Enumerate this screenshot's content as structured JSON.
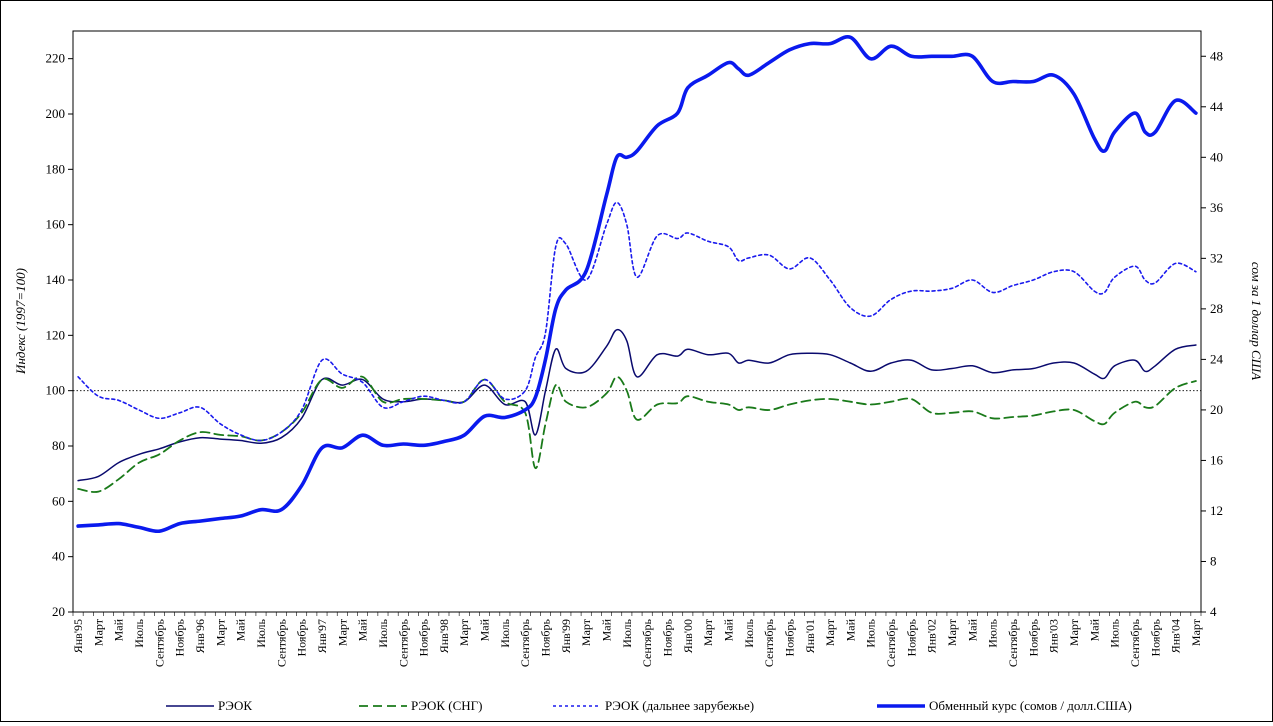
{
  "chart_data": {
    "type": "line",
    "title": "",
    "ylabel_left": "Индекс (1997=100)",
    "ylabel_right": "сом за 1 доллар США",
    "ylim_left": [
      20,
      230
    ],
    "yticks_left": [
      20,
      40,
      60,
      80,
      100,
      120,
      140,
      160,
      180,
      200,
      220
    ],
    "ylim_right": [
      4,
      50
    ],
    "yticks_right": [
      4,
      8,
      12,
      16,
      20,
      24,
      28,
      32,
      36,
      40,
      44,
      48
    ],
    "reference_line_left": 100,
    "x_start": "1995-01",
    "x_end": "2004-03",
    "x_tick_labels": [
      {
        "i": 0,
        "label": "Янв'95"
      },
      {
        "i": 2,
        "label": "Март"
      },
      {
        "i": 4,
        "label": "Май"
      },
      {
        "i": 6,
        "label": "Июль"
      },
      {
        "i": 8,
        "label": "Сентябрь"
      },
      {
        "i": 10,
        "label": "Ноябрь"
      },
      {
        "i": 12,
        "label": "Янв'96"
      },
      {
        "i": 14,
        "label": "Март"
      },
      {
        "i": 16,
        "label": "Май"
      },
      {
        "i": 18,
        "label": "Июль"
      },
      {
        "i": 20,
        "label": "Сентябрь"
      },
      {
        "i": 22,
        "label": "Ноябрь"
      },
      {
        "i": 24,
        "label": "Янв'97"
      },
      {
        "i": 26,
        "label": "Март"
      },
      {
        "i": 28,
        "label": "Май"
      },
      {
        "i": 30,
        "label": "Июль"
      },
      {
        "i": 32,
        "label": "Сентябрь"
      },
      {
        "i": 34,
        "label": "Ноябрь"
      },
      {
        "i": 36,
        "label": "Янв'98"
      },
      {
        "i": 38,
        "label": "Март"
      },
      {
        "i": 40,
        "label": "Май"
      },
      {
        "i": 42,
        "label": "Июль"
      },
      {
        "i": 44,
        "label": "Сентябрь"
      },
      {
        "i": 46,
        "label": "Ноябрь"
      },
      {
        "i": 48,
        "label": "Янв'99"
      },
      {
        "i": 50,
        "label": "Март"
      },
      {
        "i": 52,
        "label": "Май"
      },
      {
        "i": 54,
        "label": "Июль"
      },
      {
        "i": 56,
        "label": "Сентябрь"
      },
      {
        "i": 58,
        "label": "Ноябрь"
      },
      {
        "i": 60,
        "label": "Янв'00"
      },
      {
        "i": 62,
        "label": "Март"
      },
      {
        "i": 64,
        "label": "Май"
      },
      {
        "i": 66,
        "label": "Июль"
      },
      {
        "i": 68,
        "label": "Сентябрь"
      },
      {
        "i": 70,
        "label": "Ноябрь"
      },
      {
        "i": 72,
        "label": "Янв'01"
      },
      {
        "i": 74,
        "label": "Март"
      },
      {
        "i": 76,
        "label": "Май"
      },
      {
        "i": 78,
        "label": "Июль"
      },
      {
        "i": 80,
        "label": "Сентябрь"
      },
      {
        "i": 82,
        "label": "Ноябрь"
      },
      {
        "i": 84,
        "label": "Янв'02"
      },
      {
        "i": 86,
        "label": "Март"
      },
      {
        "i": 88,
        "label": "Май"
      },
      {
        "i": 90,
        "label": "Июль"
      },
      {
        "i": 92,
        "label": "Сентябрь"
      },
      {
        "i": 94,
        "label": "Ноябрь"
      },
      {
        "i": 96,
        "label": "Янв'03"
      },
      {
        "i": 98,
        "label": "Март"
      },
      {
        "i": 100,
        "label": "Май"
      },
      {
        "i": 102,
        "label": "Июль"
      },
      {
        "i": 104,
        "label": "Сентябрь"
      },
      {
        "i": 106,
        "label": "Ноябрь"
      },
      {
        "i": 108,
        "label": "Янв'04"
      },
      {
        "i": 110,
        "label": "Март"
      }
    ],
    "legend_position": "bottom",
    "series": [
      {
        "name": "РЭОК",
        "axis": "left",
        "color": "#0a0a6e",
        "style": "solid",
        "width": 1.5,
        "points": [
          [
            0,
            67.5
          ],
          [
            2,
            69
          ],
          [
            4,
            74
          ],
          [
            6,
            77
          ],
          [
            8,
            79
          ],
          [
            10,
            81.5
          ],
          [
            12,
            83
          ],
          [
            14,
            82.5
          ],
          [
            16,
            82
          ],
          [
            18,
            81
          ],
          [
            20,
            83
          ],
          [
            22,
            90
          ],
          [
            24,
            104
          ],
          [
            26,
            102
          ],
          [
            28,
            104
          ],
          [
            30,
            97
          ],
          [
            32,
            96
          ],
          [
            34,
            97
          ],
          [
            36,
            96.5
          ],
          [
            38,
            96
          ],
          [
            40,
            102
          ],
          [
            42,
            95
          ],
          [
            44,
            96
          ],
          [
            45,
            84
          ],
          [
            46,
            100
          ],
          [
            47,
            115
          ],
          [
            48,
            108
          ],
          [
            50,
            107
          ],
          [
            52,
            116
          ],
          [
            53,
            122
          ],
          [
            54,
            118
          ],
          [
            55,
            105
          ],
          [
            57,
            113
          ],
          [
            59,
            112.5
          ],
          [
            60,
            115
          ],
          [
            62,
            113
          ],
          [
            64,
            113.5
          ],
          [
            65,
            110
          ],
          [
            66,
            111
          ],
          [
            68,
            110
          ],
          [
            70,
            113
          ],
          [
            72,
            113.5
          ],
          [
            74,
            113
          ],
          [
            76,
            110
          ],
          [
            78,
            107
          ],
          [
            80,
            110
          ],
          [
            82,
            111
          ],
          [
            84,
            107.5
          ],
          [
            86,
            108
          ],
          [
            88,
            109
          ],
          [
            90,
            106.5
          ],
          [
            92,
            107.5
          ],
          [
            94,
            108
          ],
          [
            96,
            110
          ],
          [
            98,
            110
          ],
          [
            100,
            106
          ],
          [
            101,
            104.5
          ],
          [
            102,
            109
          ],
          [
            104,
            111
          ],
          [
            105,
            107
          ],
          [
            106,
            109
          ],
          [
            108,
            115
          ],
          [
            110,
            116.5
          ]
        ]
      },
      {
        "name": "РЭОК (СНГ)",
        "axis": "left",
        "color": "#1a7a1a",
        "style": "dashed",
        "width": 1.8,
        "points": [
          [
            0,
            64.5
          ],
          [
            2,
            63.5
          ],
          [
            4,
            68
          ],
          [
            6,
            74
          ],
          [
            8,
            77
          ],
          [
            10,
            82
          ],
          [
            12,
            85
          ],
          [
            14,
            84
          ],
          [
            16,
            83.5
          ],
          [
            18,
            82
          ],
          [
            20,
            85
          ],
          [
            22,
            92
          ],
          [
            24,
            104
          ],
          [
            26,
            101
          ],
          [
            28,
            105
          ],
          [
            30,
            96
          ],
          [
            32,
            97
          ],
          [
            34,
            97
          ],
          [
            36,
            96.5
          ],
          [
            38,
            96
          ],
          [
            40,
            104
          ],
          [
            42,
            96
          ],
          [
            44,
            92
          ],
          [
            45,
            72
          ],
          [
            46,
            88
          ],
          [
            47,
            102
          ],
          [
            48,
            96
          ],
          [
            50,
            94
          ],
          [
            52,
            99
          ],
          [
            53,
            105
          ],
          [
            54,
            100
          ],
          [
            55,
            89.5
          ],
          [
            57,
            95
          ],
          [
            59,
            95.5
          ],
          [
            60,
            98
          ],
          [
            62,
            96
          ],
          [
            64,
            95
          ],
          [
            65,
            93
          ],
          [
            66,
            94
          ],
          [
            68,
            93
          ],
          [
            70,
            95
          ],
          [
            72,
            96.5
          ],
          [
            74,
            97
          ],
          [
            76,
            96
          ],
          [
            78,
            95
          ],
          [
            80,
            96
          ],
          [
            82,
            97
          ],
          [
            84,
            92
          ],
          [
            86,
            92
          ],
          [
            88,
            92.5
          ],
          [
            90,
            90
          ],
          [
            92,
            90.5
          ],
          [
            94,
            91
          ],
          [
            96,
            92.5
          ],
          [
            98,
            93
          ],
          [
            100,
            89
          ],
          [
            101,
            88
          ],
          [
            102,
            92
          ],
          [
            104,
            96
          ],
          [
            105,
            94
          ],
          [
            106,
            94.5
          ],
          [
            108,
            101
          ],
          [
            110,
            103.5
          ]
        ]
      },
      {
        "name": "РЭОК (дальнее зарубежье)",
        "axis": "left",
        "color": "#1a1aee",
        "style": "dotted",
        "width": 1.6,
        "points": [
          [
            0,
            105
          ],
          [
            2,
            98
          ],
          [
            4,
            96.5
          ],
          [
            6,
            93
          ],
          [
            8,
            90
          ],
          [
            10,
            92
          ],
          [
            12,
            94
          ],
          [
            14,
            88
          ],
          [
            16,
            84
          ],
          [
            18,
            82
          ],
          [
            20,
            85
          ],
          [
            22,
            93
          ],
          [
            24,
            111
          ],
          [
            26,
            106
          ],
          [
            28,
            103
          ],
          [
            30,
            94
          ],
          [
            32,
            96
          ],
          [
            34,
            98
          ],
          [
            36,
            96.5
          ],
          [
            38,
            96
          ],
          [
            40,
            104
          ],
          [
            42,
            97
          ],
          [
            44,
            100
          ],
          [
            45,
            112
          ],
          [
            46,
            121
          ],
          [
            47,
            152
          ],
          [
            48,
            153
          ],
          [
            50,
            140
          ],
          [
            52,
            160
          ],
          [
            53,
            168
          ],
          [
            54,
            160
          ],
          [
            55,
            141
          ],
          [
            57,
            156
          ],
          [
            59,
            155
          ],
          [
            60,
            157
          ],
          [
            62,
            154
          ],
          [
            64,
            152
          ],
          [
            65,
            147
          ],
          [
            66,
            148
          ],
          [
            68,
            149
          ],
          [
            70,
            144
          ],
          [
            72,
            148
          ],
          [
            74,
            140
          ],
          [
            76,
            130
          ],
          [
            78,
            127
          ],
          [
            80,
            133
          ],
          [
            82,
            136
          ],
          [
            84,
            136
          ],
          [
            86,
            137
          ],
          [
            88,
            140
          ],
          [
            90,
            135.5
          ],
          [
            92,
            138
          ],
          [
            94,
            140
          ],
          [
            96,
            143
          ],
          [
            98,
            143
          ],
          [
            100,
            136
          ],
          [
            101,
            135.5
          ],
          [
            102,
            141
          ],
          [
            104,
            145
          ],
          [
            105,
            140
          ],
          [
            106,
            139
          ],
          [
            108,
            146
          ],
          [
            110,
            143
          ]
        ]
      },
      {
        "name": "Обменный курс (сомов / долл.США)",
        "axis": "right",
        "color": "#0a1aee",
        "style": "solid",
        "width": 3.6,
        "points": [
          [
            0,
            10.8
          ],
          [
            2,
            10.9
          ],
          [
            4,
            11
          ],
          [
            6,
            10.7
          ],
          [
            8,
            10.4
          ],
          [
            10,
            11
          ],
          [
            12,
            11.2
          ],
          [
            14,
            11.4
          ],
          [
            16,
            11.6
          ],
          [
            18,
            12.1
          ],
          [
            20,
            12.1
          ],
          [
            22,
            14
          ],
          [
            24,
            17
          ],
          [
            26,
            17
          ],
          [
            28,
            18
          ],
          [
            30,
            17.2
          ],
          [
            32,
            17.3
          ],
          [
            34,
            17.2
          ],
          [
            36,
            17.5
          ],
          [
            38,
            18
          ],
          [
            40,
            19.5
          ],
          [
            42,
            19.4
          ],
          [
            44,
            20
          ],
          [
            45,
            21
          ],
          [
            46,
            24
          ],
          [
            47,
            28
          ],
          [
            48,
            29.5
          ],
          [
            50,
            31
          ],
          [
            52,
            37
          ],
          [
            53,
            40
          ],
          [
            54,
            40
          ],
          [
            55,
            40.5
          ],
          [
            57,
            42.5
          ],
          [
            59,
            43.5
          ],
          [
            60,
            45.5
          ],
          [
            62,
            46.5
          ],
          [
            64,
            47.5
          ],
          [
            65,
            47
          ],
          [
            66,
            46.5
          ],
          [
            68,
            47.5
          ],
          [
            70,
            48.5
          ],
          [
            72,
            49
          ],
          [
            74,
            49
          ],
          [
            76,
            49.5
          ],
          [
            78,
            47.8
          ],
          [
            80,
            48.8
          ],
          [
            82,
            48
          ],
          [
            84,
            48
          ],
          [
            86,
            48
          ],
          [
            88,
            48
          ],
          [
            90,
            46
          ],
          [
            92,
            46
          ],
          [
            94,
            46
          ],
          [
            96,
            46.5
          ],
          [
            98,
            45
          ],
          [
            100,
            41.5
          ],
          [
            101,
            40.5
          ],
          [
            102,
            42
          ],
          [
            104,
            43.5
          ],
          [
            105,
            42
          ],
          [
            106,
            42
          ],
          [
            108,
            44.5
          ],
          [
            110,
            43.5
          ]
        ]
      }
    ]
  }
}
